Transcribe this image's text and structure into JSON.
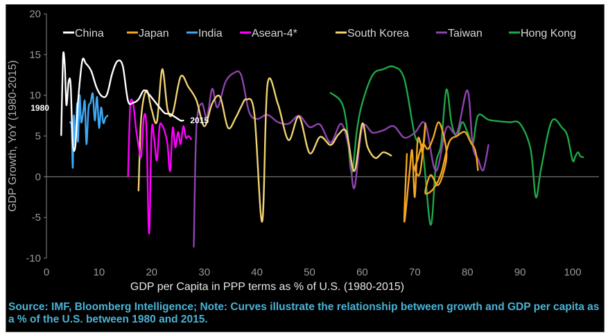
{
  "chart_data": {
    "type": "line",
    "title": "",
    "xlabel": "GDP per Capita in PPP terms as % of U.S. (1980-2015)",
    "ylabel": "GDP Growth, YoY (1980-2015)",
    "xlim": [
      0,
      105
    ],
    "ylim": [
      -10,
      20
    ],
    "xticks": [
      0,
      10,
      20,
      30,
      40,
      50,
      60,
      70,
      80,
      90,
      100
    ],
    "yticks": [
      -10,
      -5,
      0,
      5,
      10,
      15,
      20
    ],
    "legend_position": "top",
    "annotations": [
      {
        "text": "1980",
        "series": "China",
        "at": "start"
      },
      {
        "text": "2015",
        "series": "China",
        "at": "end"
      }
    ],
    "series": [
      {
        "name": "China",
        "color": "#ffffff",
        "x": [
          2.8,
          3.0,
          3.2,
          3.5,
          3.8,
          4.2,
          4.6,
          5.0,
          5.5,
          6.0,
          6.8,
          7.5,
          8.5,
          9.5,
          10.5,
          11.5,
          12.5,
          13.5,
          14.5,
          15.5,
          16.5,
          17.5,
          18.5,
          19.5,
          20.5,
          21.5,
          22.5,
          23.5,
          24.5,
          25.5,
          26.0
        ],
        "y": [
          5.1,
          11.0,
          15.2,
          13.5,
          8.8,
          11.6,
          11.3,
          4.1,
          3.8,
          9.2,
          14.2,
          13.9,
          13.0,
          11.0,
          9.9,
          10.1,
          12.7,
          14.2,
          13.6,
          9.3,
          9.1,
          9.5,
          10.6,
          10.1,
          9.3,
          8.5,
          7.8,
          7.7,
          7.3,
          6.9,
          6.9
        ]
      },
      {
        "name": "Japan",
        "color": "#f5a623",
        "x": [
          68.5,
          68.0,
          69.0,
          69.5,
          70.0,
          70.5,
          71.0,
          71.5,
          72.0,
          71.0,
          70.0,
          70.5,
          71.5,
          72.5,
          73.5,
          74.5,
          75.5,
          76.0,
          74.5,
          73.0,
          72.0,
          73.5,
          75.0,
          76.5,
          78.0,
          79.5,
          80.5,
          81.5,
          82.0
        ],
        "y": [
          2.8,
          -5.5,
          0.5,
          3.2,
          -2.5,
          4.2,
          4.4,
          3.0,
          6.5,
          0.5,
          1.0,
          2.0,
          4.0,
          3.4,
          4.8,
          6.7,
          5.0,
          2.2,
          -1.0,
          0.2,
          -2.0,
          -1.5,
          0.4,
          4.2,
          5.0,
          5.5,
          4.4,
          3.2,
          0.8
        ]
      },
      {
        "name": "India",
        "color": "#3fa9f5",
        "x": [
          4.5,
          4.8,
          5.0,
          5.2,
          5.5,
          5.8,
          6.0,
          6.3,
          6.6,
          7.0,
          7.3,
          7.6,
          8.0,
          8.4,
          8.8,
          9.2,
          9.6,
          10.0,
          10.4,
          10.8,
          11.2,
          11.6
        ],
        "y": [
          6.7,
          6.0,
          1.1,
          7.5,
          3.8,
          9.0,
          4.3,
          10.0,
          6.7,
          8.0,
          9.2,
          4.0,
          8.4,
          9.1,
          10.2,
          6.9,
          9.8,
          6.0,
          8.5,
          6.6,
          7.2,
          7.5
        ]
      },
      {
        "name": "Asean-4*",
        "color": "#ff00ff",
        "x": [
          15.5,
          15.8,
          16.0,
          16.5,
          17.0,
          17.5,
          18.0,
          18.5,
          19.0,
          19.5,
          20.0,
          20.5,
          21.0,
          21.5,
          22.0,
          22.5,
          23.0,
          23.5,
          24.0,
          24.5,
          25.0,
          25.5,
          26.0,
          26.5,
          27.0,
          27.5
        ],
        "y": [
          0.0,
          6.7,
          9.3,
          8.9,
          6.0,
          3.8,
          2.5,
          7.2,
          6.0,
          -7.0,
          5.7,
          4.5,
          2.0,
          6.2,
          6.3,
          5.5,
          4.0,
          0.7,
          6.0,
          3.6,
          5.5,
          4.0,
          6.2,
          4.8,
          5.0,
          4.6
        ]
      },
      {
        "name": "South Korea",
        "color": "#f0d470",
        "x": [
          17.5,
          18.0,
          19.0,
          20.0,
          21.0,
          22.0,
          23.0,
          24.0,
          25.5,
          27.0,
          28.5,
          30.0,
          31.5,
          33.0,
          34.5,
          36.0,
          37.0,
          38.0,
          39.5,
          41.0,
          42.0,
          44.0,
          46.0,
          48.0,
          50.0,
          52.0,
          54.0,
          55.5,
          57.0,
          58.5,
          60.0,
          61.0,
          62.5,
          64.0,
          65.5
        ],
        "y": [
          -1.7,
          7.2,
          10.6,
          8.2,
          6.8,
          13.2,
          8.3,
          7.8,
          12.3,
          11.0,
          9.4,
          6.2,
          9.0,
          9.8,
          6.0,
          7.3,
          8.6,
          9.5,
          7.8,
          -5.5,
          11.3,
          8.9,
          4.5,
          7.4,
          2.9,
          4.9,
          3.9,
          5.2,
          5.5,
          0.7,
          6.5,
          3.7,
          2.3,
          3.0,
          2.6
        ]
      },
      {
        "name": "Taiwan",
        "color": "#8e44ad",
        "x": [
          28.0,
          28.5,
          29.5,
          30.5,
          31.5,
          32.5,
          34.0,
          35.5,
          37.0,
          38.5,
          40.0,
          42.0,
          44.0,
          46.0,
          48.0,
          50.0,
          52.0,
          54.0,
          56.0,
          57.5,
          58.5,
          60.0,
          62.0,
          64.0,
          66.0,
          68.0,
          70.0,
          72.0,
          74.0,
          76.0,
          78.0,
          80.0,
          81.0,
          82.0,
          83.0,
          84.0
        ],
        "y": [
          -8.6,
          6.0,
          9.0,
          7.3,
          10.8,
          8.5,
          11.6,
          12.7,
          12.5,
          8.0,
          7.1,
          7.6,
          6.7,
          6.5,
          7.5,
          6.1,
          6.4,
          4.2,
          6.5,
          3.4,
          -1.4,
          6.0,
          5.4,
          5.7,
          6.2,
          4.8,
          5.4,
          6.5,
          0.7,
          6.0,
          5.4,
          10.6,
          3.8,
          2.2,
          0.8,
          3.9
        ]
      },
      {
        "name": "Hong Kong",
        "color": "#1fa847",
        "x": [
          54.0,
          56.0,
          57.0,
          58.0,
          59.0,
          60.0,
          62.0,
          64.0,
          66.0,
          68.0,
          70.0,
          71.5,
          73.0,
          74.0,
          75.0,
          76.0,
          77.0,
          78.0,
          79.0,
          80.0,
          81.0,
          82.0,
          84.0,
          86.0,
          88.0,
          90.0,
          92.0,
          93.0,
          94.0,
          96.0,
          98.0,
          99.0,
          100.0,
          100.5,
          101.0,
          101.5,
          102.0
        ],
        "y": [
          10.3,
          9.2,
          6.6,
          0.5,
          5.7,
          9.0,
          12.5,
          13.2,
          13.5,
          12.0,
          5.1,
          3.2,
          -5.9,
          1.5,
          4.0,
          10.7,
          6.5,
          5.0,
          6.7,
          5.5,
          4.0,
          7.5,
          7.0,
          6.8,
          6.7,
          6.5,
          3.4,
          -2.5,
          1.0,
          6.8,
          6.0,
          5.0,
          2.0,
          2.5,
          3.0,
          2.5,
          2.4
        ]
      }
    ]
  },
  "source_note": "Source: IMF, Bloomberg Intelligence; Note: Curves illustrate the relationship between growth and GDP per capita as a % of the U.S. between 1980 and 2015."
}
